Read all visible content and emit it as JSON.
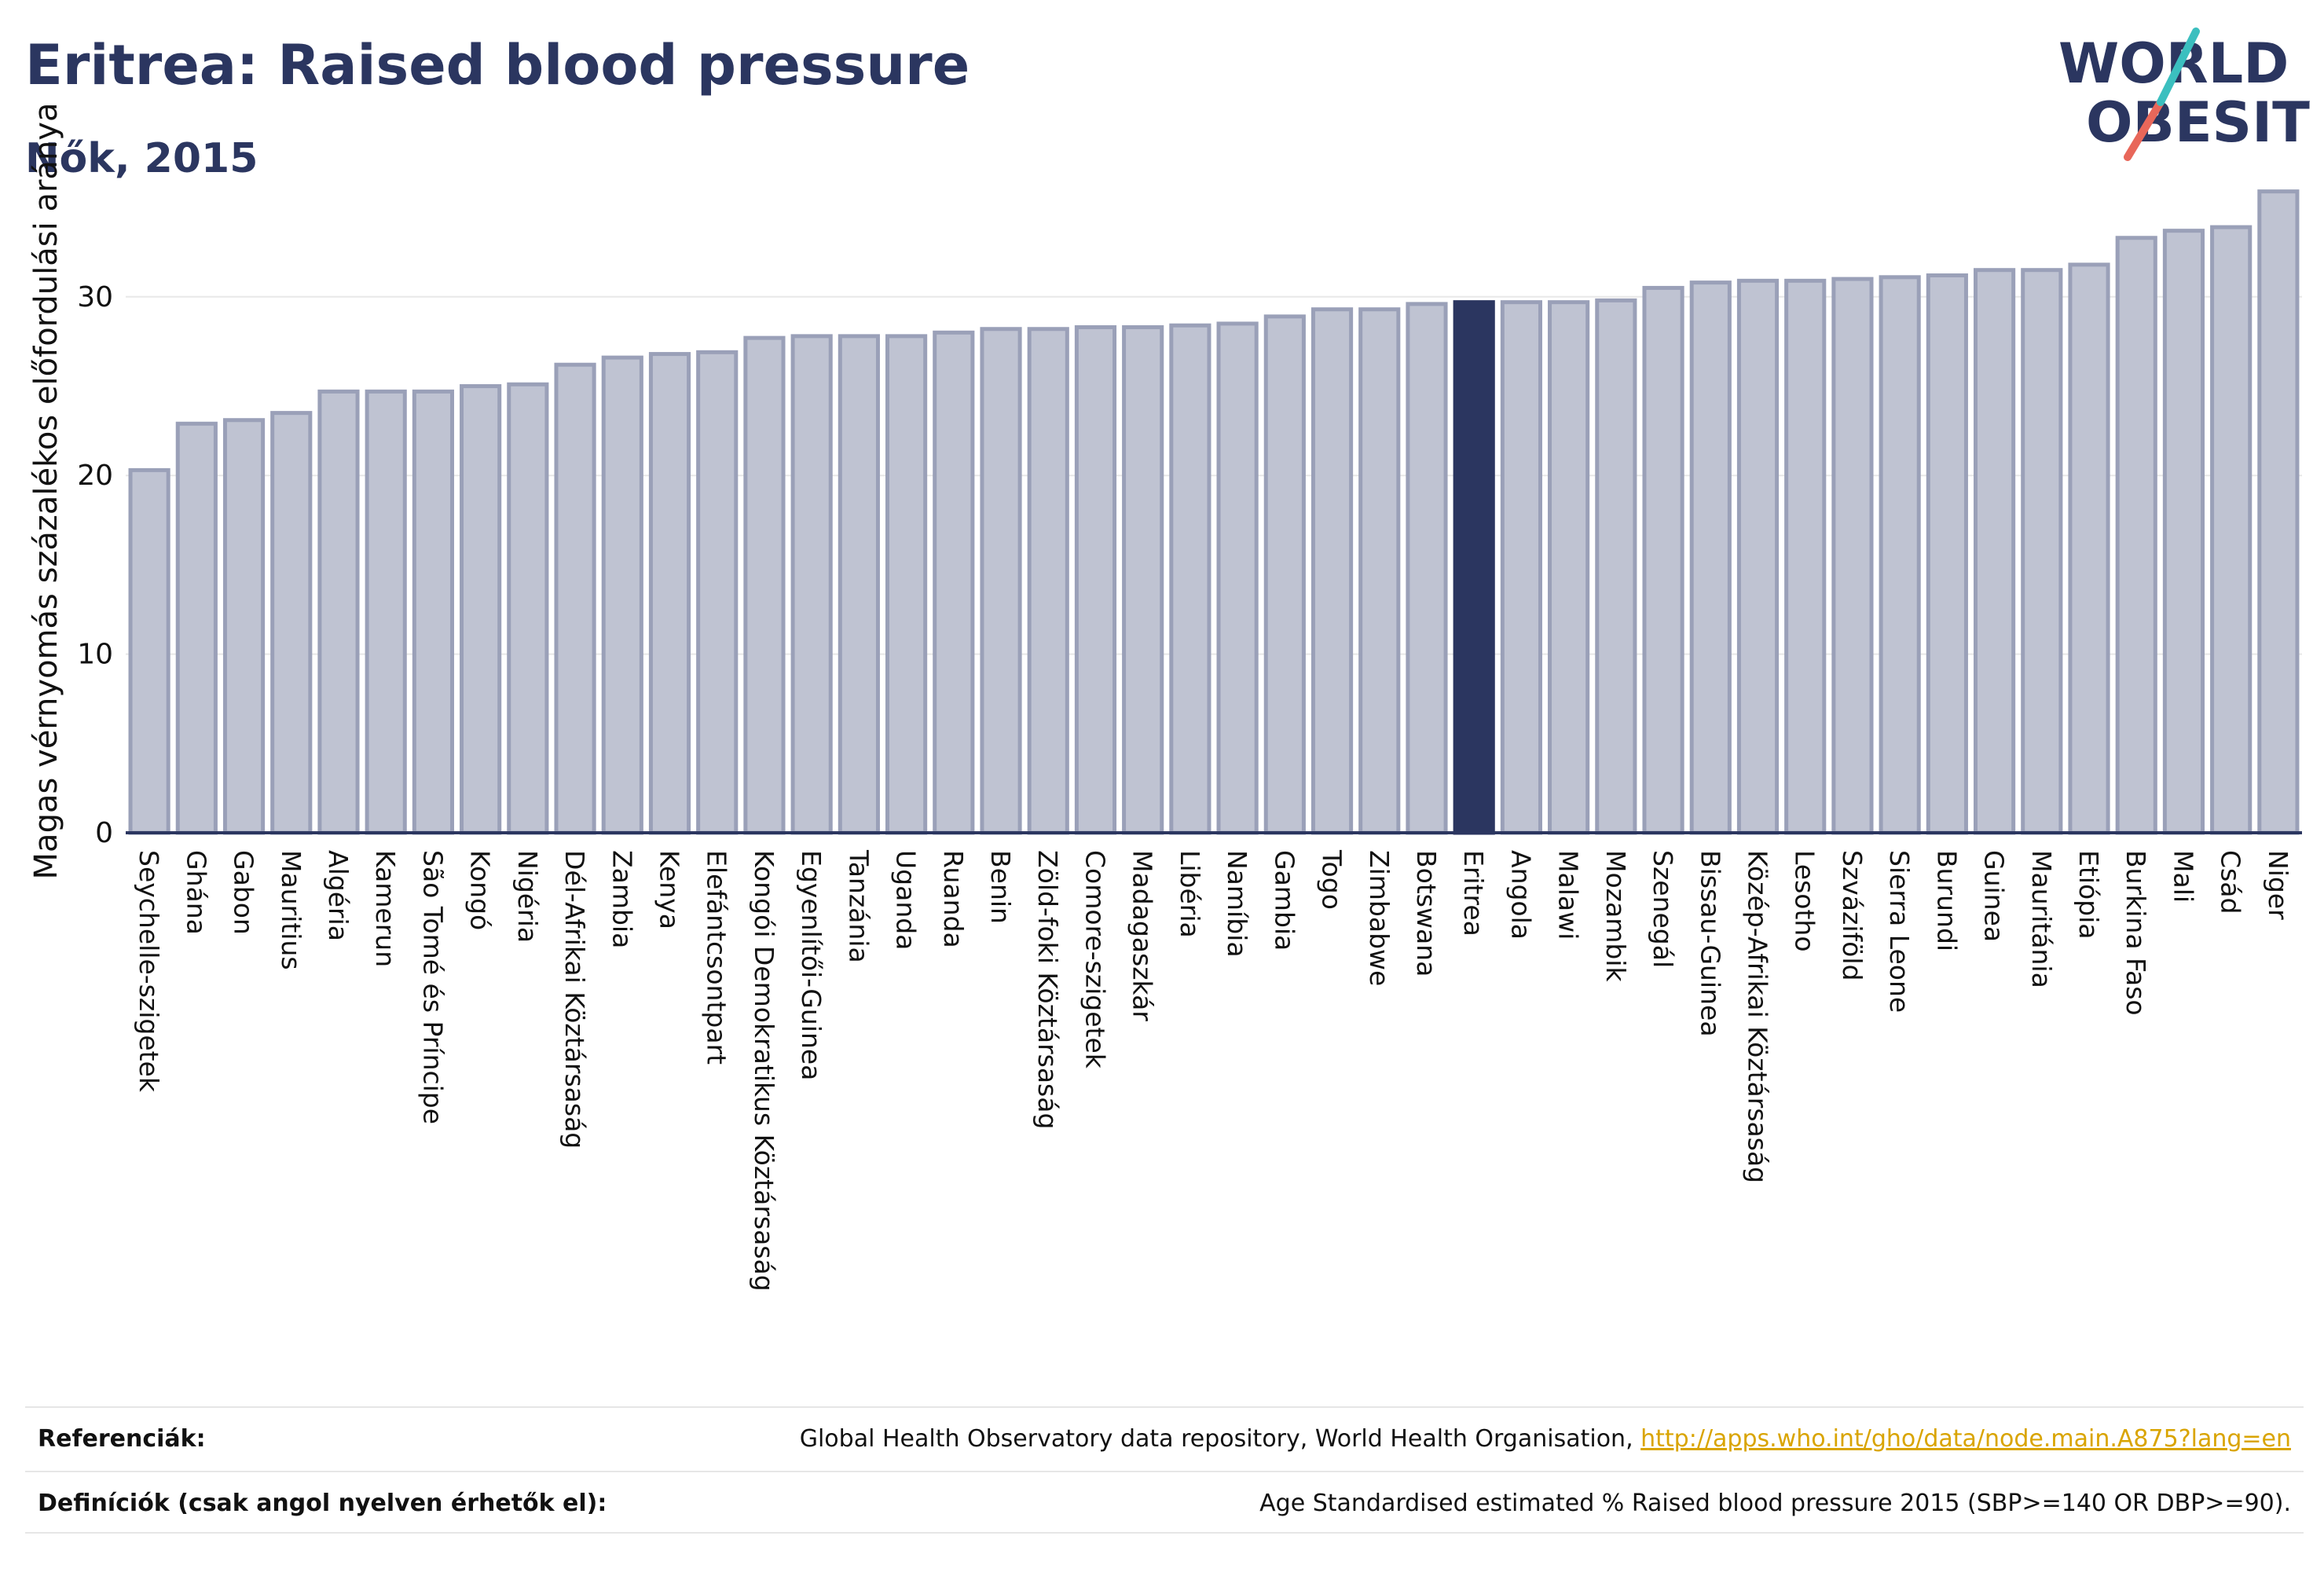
{
  "header": {
    "title": "Eritrea: Raised blood pressure",
    "subtitle": "Nők, 2015"
  },
  "logo": {
    "line1": "WORLD",
    "line2": "OBESITY"
  },
  "chart_data": {
    "type": "bar",
    "ylabel": "Magas vérnyomás százalékos előfordulási aránya",
    "xlabel": "",
    "ylim": [
      0,
      36.5
    ],
    "yticks": [
      0,
      10,
      20,
      30
    ],
    "highlight": "Eritrea",
    "colors": {
      "bar": "#bfc3d2",
      "bar_edge": "#9aa0b8",
      "highlight": "#2b3660",
      "grid": "#e8e8e8",
      "axis": "#2b3660"
    },
    "categories": [
      "Seychelle-szigetek",
      "Ghána",
      "Gabon",
      "Mauritius",
      "Algéria",
      "Kamerun",
      "São Tomé és Príncipe",
      "Kongó",
      "Nigéria",
      "Dél-Afrikai Köztársaság",
      "Zambia",
      "Kenya",
      "Elefántcsontpart",
      "Kongói Demokratikus Köztársaság",
      "Egyenlítői-Guinea",
      "Tanzánia",
      "Uganda",
      "Ruanda",
      "Benin",
      "Zöld-foki Köztársaság",
      "Comore-szigetek",
      "Madagaszkár",
      "Libéria",
      "Namíbia",
      "Gambia",
      "Togo",
      "Zimbabwe",
      "Botswana",
      "Eritrea",
      "Angola",
      "Malawi",
      "Mozambik",
      "Szenegál",
      "Bissau-Guinea",
      "Közép-Afrikai Köztársaság",
      "Lesotho",
      "Szváziföld",
      "Sierra Leone",
      "Burundi",
      "Guinea",
      "Mauritánia",
      "Etiópia",
      "Burkina Faso",
      "Mali",
      "Csád",
      "Niger"
    ],
    "values": [
      20.3,
      22.9,
      23.1,
      23.5,
      24.7,
      24.7,
      24.7,
      25.0,
      25.1,
      26.2,
      26.6,
      26.8,
      26.9,
      27.7,
      27.8,
      27.8,
      27.8,
      28.0,
      28.2,
      28.2,
      28.3,
      28.3,
      28.4,
      28.5,
      28.9,
      29.3,
      29.3,
      29.6,
      29.7,
      29.7,
      29.7,
      29.8,
      30.5,
      30.8,
      30.9,
      30.9,
      31.0,
      31.1,
      31.2,
      31.5,
      31.5,
      31.8,
      33.3,
      33.7,
      33.9,
      35.9
    ]
  },
  "footer": {
    "references_label": "Referenciák:",
    "references_text": "Global Health Observatory data repository, World Health Organisation, ",
    "references_link": "http://apps.who.int/gho/data/node.main.A875?lang=en",
    "definitions_label": "Definíciók (csak angol nyelven érhetők el):",
    "definitions_text": "Age Standardised estimated % Raised blood pressure 2015 (SBP>=140 OR DBP>=90)."
  }
}
